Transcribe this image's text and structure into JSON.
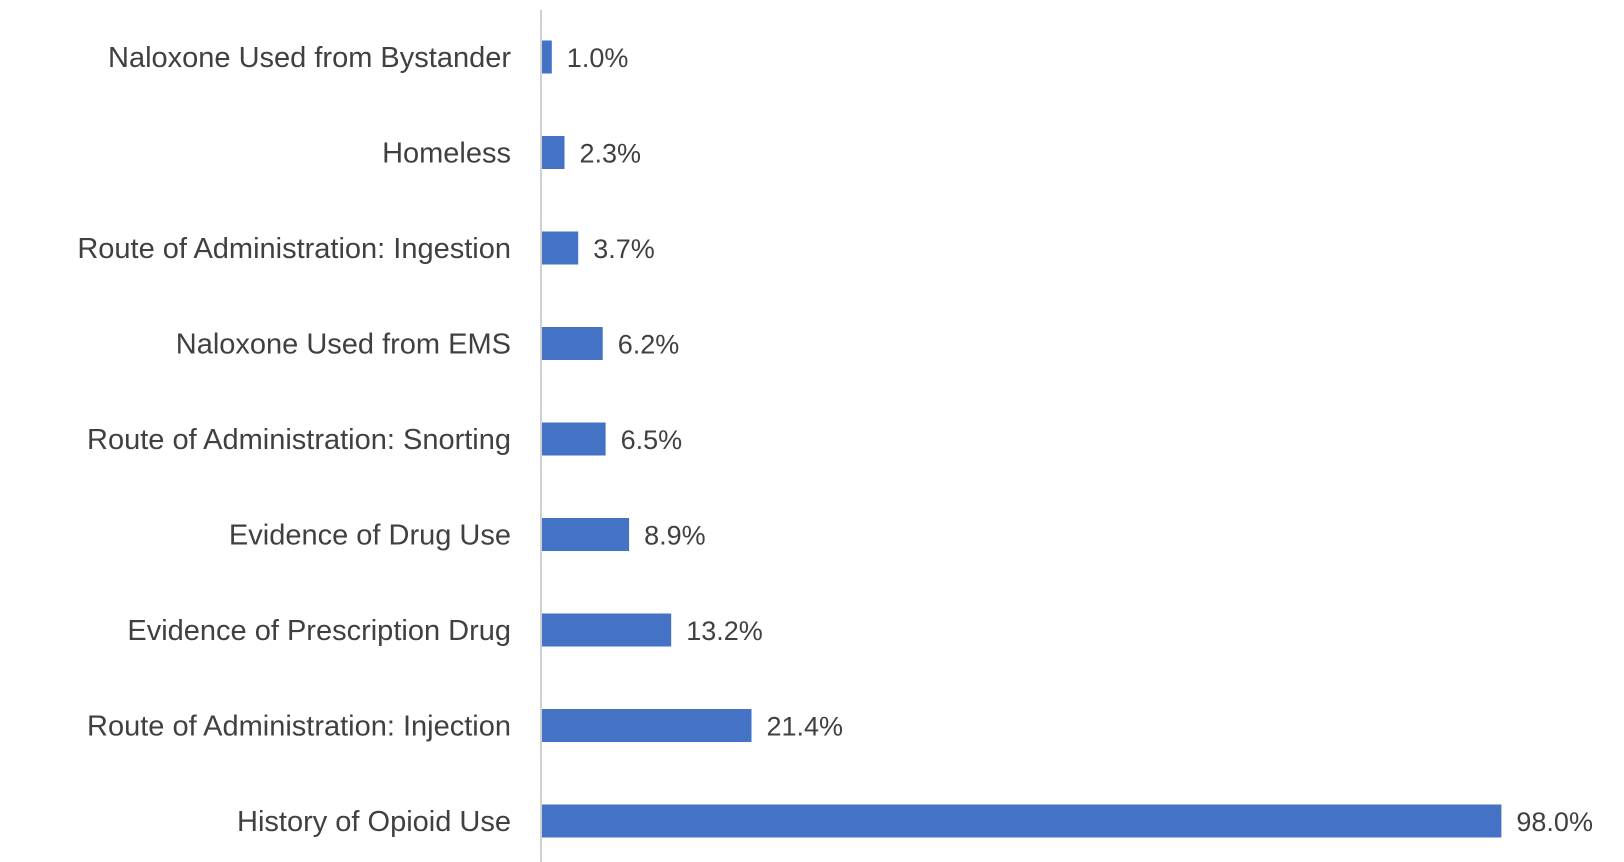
{
  "chart_data": {
    "type": "bar",
    "orientation": "horizontal",
    "categories": [
      "Naloxone Used from Bystander",
      "Homeless",
      "Route of Administration: Ingestion",
      "Naloxone Used from EMS",
      "Route of Administration: Snorting",
      "Evidence of Drug Use",
      "Evidence of Prescription Drug",
      "Route of Administration: Injection",
      "History of Opioid Use"
    ],
    "values": [
      1.0,
      2.3,
      3.7,
      6.2,
      6.5,
      8.9,
      13.2,
      21.4,
      98.0
    ],
    "data_labels": [
      "1.0%",
      "2.3%",
      "3.7%",
      "6.2%",
      "6.5%",
      "8.9%",
      "13.2%",
      "21.4%",
      "98.0%"
    ],
    "value_unit": "%",
    "xlim": [
      0,
      100
    ],
    "grid": false,
    "legend": "none",
    "bar_color": "#4472c4",
    "title": "",
    "xlabel": "",
    "ylabel": ""
  }
}
